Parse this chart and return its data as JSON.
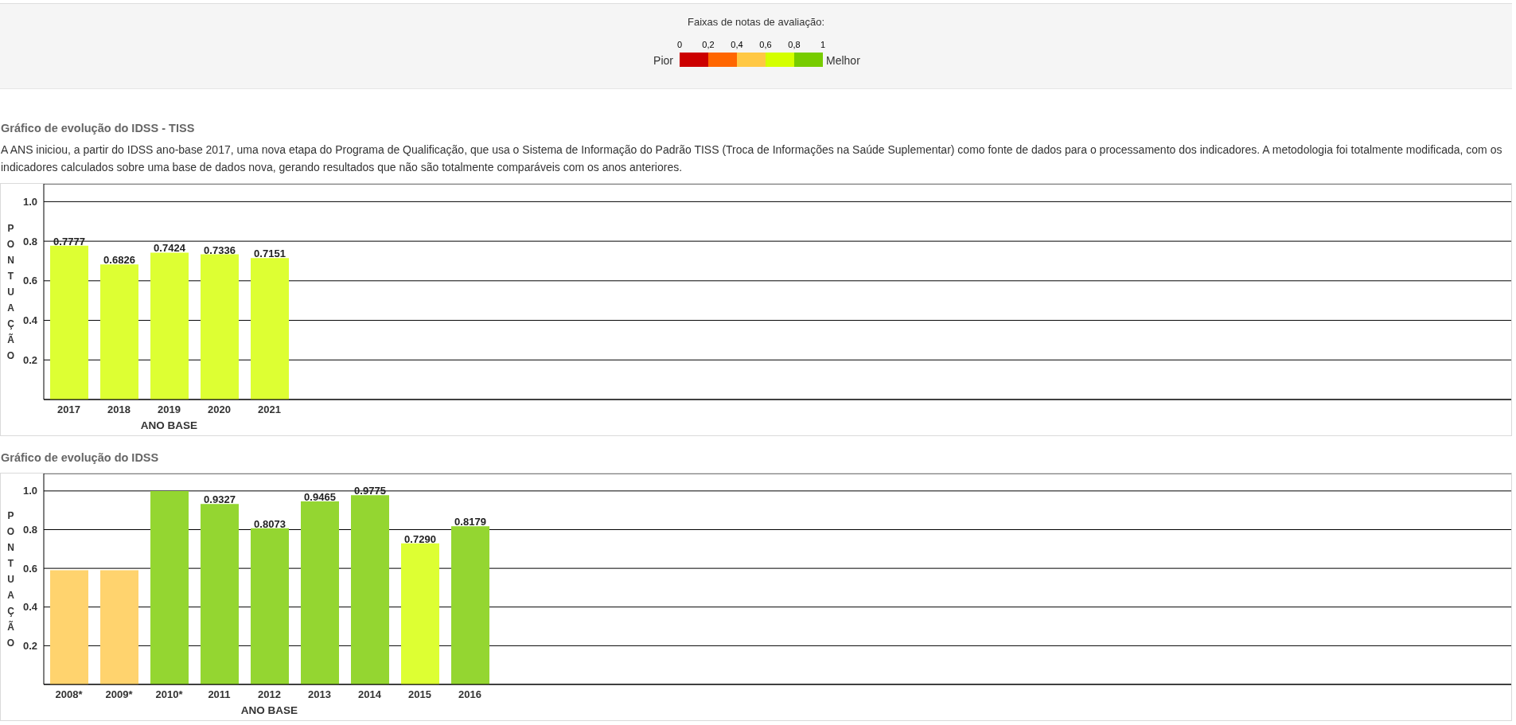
{
  "chart_data": [
    {
      "type": "bar",
      "orientation": "horizontal",
      "stacked": true,
      "title": "Faixas de notas de avaliação:",
      "annotations": [
        "Pior",
        "Melhor"
      ],
      "categories": [
        null
      ],
      "series": [
        {
          "color": "#cc0000",
          "values": [
            0.2
          ]
        },
        {
          "color": "#ff6600",
          "values": [
            0.2
          ]
        },
        {
          "color": "#ffc844",
          "values": [
            0.2
          ]
        },
        {
          "color": "#d4ff00",
          "values": [
            0.2
          ]
        },
        {
          "color": "#77cc00",
          "values": [
            0.2
          ]
        }
      ],
      "xlim": [
        0,
        1
      ],
      "xticks": [
        0,
        {
          "value": 0.2,
          "label": "0,2"
        },
        {
          "value": 0.4,
          "label": "0,4"
        },
        {
          "value": 0.6,
          "label": "0,6"
        },
        {
          "value": 0.8,
          "label": "0,8"
        },
        1
      ],
      "tick_labels": "x"
    },
    {
      "type": "bar",
      "title": "Gráfico de evolução do IDSS - TISS",
      "subtitle": "A ANS iniciou, a partir do IDSS ano-base 2017, uma nova etapa do Programa de Qualificação, que usa o Sistema de Informação do Padrão TISS (Troca de Informações na Saúde Suplementar) como fonte de dados para o processamento dos indicadores. A metodologia foi totalmente modificada, com os indicadores calculados sobre uma base de dados nova, gerando resultados que não são totalmente comparáveis com os anos anteriores.",
      "xlabel": "ANO BASE",
      "ylabel": "PONTUAÇÃO",
      "categories": [
        "2017",
        "2018",
        "2019",
        "2020",
        "2021"
      ],
      "values": [
        0.7777,
        0.6826,
        0.7424,
        0.7336,
        0.7151
      ],
      "color": "#ddff33",
      "ylim": [
        0,
        1.09
      ],
      "yticks": [
        0.2,
        0.4,
        0.6,
        0.8,
        {
          "value": 1,
          "label": "1.0"
        }
      ],
      "grid": "y",
      "data_labels": true
    },
    {
      "type": "bar",
      "title": "Gráfico de evolução do IDSS",
      "xlabel": "ANO BASE",
      "ylabel": "PONTUAÇÃO",
      "categories": [
        "2008*",
        "2009*",
        "2010*",
        "2011",
        "2012",
        "2013",
        "2014",
        "2015",
        "2016"
      ],
      "values": [
        0.59,
        0.59,
        1.0,
        0.9327,
        0.8073,
        0.9465,
        0.9775,
        0.729,
        0.8179
      ],
      "colors": [
        "#ffd36e",
        "#ffd36e",
        "#94d631",
        "#94d631",
        "#94d631",
        "#94d631",
        "#94d631",
        "#ddff33",
        "#94d631"
      ],
      "value_labels": [
        null,
        null,
        null,
        "0.9327",
        "0.8073",
        "0.9465",
        "0.9775",
        "0.7290",
        "0.8179"
      ],
      "ylim": [
        0,
        1.09
      ],
      "yticks": [
        0.2,
        0.4,
        0.6,
        0.8,
        {
          "value": 1,
          "label": "1.0"
        }
      ],
      "grid": "y"
    }
  ]
}
